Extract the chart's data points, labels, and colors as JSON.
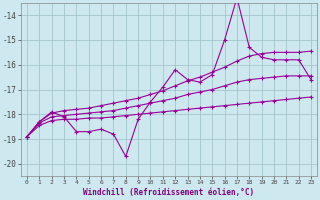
{
  "xlabel": "Windchill (Refroidissement éolien,°C)",
  "bg_color": "#cde8ee",
  "line_color": "#990099",
  "grid_color": "#9bbfc7",
  "ylim": [
    -20.5,
    -13.5
  ],
  "xlim": [
    -0.5,
    23.5
  ],
  "yticks": [
    -20,
    -19,
    -18,
    -17,
    -16,
    -15,
    -14
  ],
  "xticks": [
    0,
    1,
    2,
    3,
    4,
    5,
    6,
    7,
    8,
    9,
    10,
    11,
    12,
    13,
    14,
    15,
    16,
    17,
    18,
    19,
    20,
    21,
    22,
    23
  ],
  "x": [
    0,
    1,
    2,
    3,
    4,
    5,
    6,
    7,
    8,
    9,
    10,
    11,
    12,
    13,
    14,
    15,
    16,
    17,
    18,
    19,
    20,
    21,
    22,
    23
  ],
  "line_jagged": [
    -18.9,
    -18.3,
    -17.9,
    -18.1,
    -18.7,
    -18.7,
    -18.6,
    -18.8,
    -19.7,
    -18.2,
    -17.5,
    -16.9,
    -16.2,
    -16.6,
    -16.7,
    -16.4,
    -15.0,
    -13.3,
    -15.3,
    -15.7,
    -15.8,
    -15.8,
    -15.8,
    -16.6
  ],
  "line_upper": [
    -18.9,
    -18.3,
    -17.95,
    -17.85,
    -17.8,
    -17.75,
    -17.65,
    -17.55,
    -17.45,
    -17.35,
    -17.2,
    -17.05,
    -16.85,
    -16.65,
    -16.5,
    -16.3,
    -16.1,
    -15.85,
    -15.65,
    -15.55,
    -15.5,
    -15.5,
    -15.5,
    -15.45
  ],
  "line_mid": [
    -18.9,
    -18.35,
    -18.1,
    -18.05,
    -18.0,
    -17.95,
    -17.9,
    -17.85,
    -17.75,
    -17.65,
    -17.55,
    -17.45,
    -17.35,
    -17.2,
    -17.1,
    -17.0,
    -16.85,
    -16.7,
    -16.6,
    -16.55,
    -16.5,
    -16.45,
    -16.45,
    -16.45
  ],
  "line_lower": [
    -18.9,
    -18.45,
    -18.25,
    -18.2,
    -18.2,
    -18.15,
    -18.15,
    -18.1,
    -18.05,
    -18.0,
    -17.95,
    -17.9,
    -17.85,
    -17.8,
    -17.75,
    -17.7,
    -17.65,
    -17.6,
    -17.55,
    -17.5,
    -17.45,
    -17.4,
    -17.35,
    -17.3
  ]
}
